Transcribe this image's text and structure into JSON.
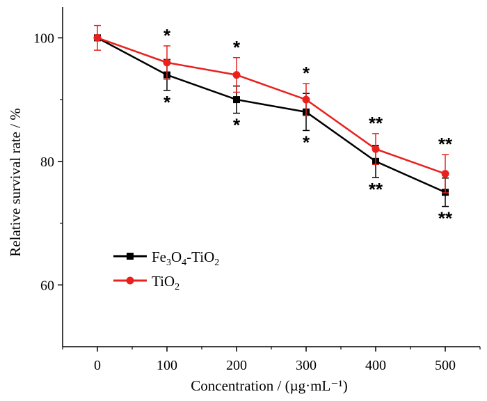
{
  "chart_data": {
    "type": "line",
    "xlabel": "Concentration / (µg·mL⁻¹)",
    "ylabel": "Relative survival rate / %",
    "xlim": [
      -50,
      550
    ],
    "ylim": [
      50,
      105
    ],
    "x": [
      0,
      100,
      200,
      300,
      400,
      500
    ],
    "x_ticks": [
      0,
      100,
      200,
      300,
      400,
      500
    ],
    "y_ticks": [
      60,
      80,
      100
    ],
    "legend_position": "lower-left",
    "series": [
      {
        "name": "Fe3O4-TiO2",
        "legend_parts": {
          "a": "Fe",
          "s1": "3",
          "b": "O",
          "s2": "4",
          "c": "-TiO",
          "s3": "2"
        },
        "color": "#000000",
        "marker": "square",
        "values": [
          100,
          94,
          90,
          88,
          80,
          75
        ],
        "errors": [
          0,
          2.5,
          2.2,
          3.0,
          2.6,
          2.3
        ],
        "significance": [
          "",
          "*",
          "*",
          "*",
          "**",
          "**"
        ],
        "significance_position": "below"
      },
      {
        "name": "TiO2",
        "legend_parts": {
          "a": "TiO",
          "s1": "2"
        },
        "color": "#e8211d",
        "marker": "circle",
        "values": [
          100,
          96,
          94,
          90,
          82,
          78
        ],
        "errors": [
          2.0,
          2.7,
          2.8,
          2.6,
          2.5,
          3.1
        ],
        "significance": [
          "",
          "*",
          "*",
          "*",
          "**",
          "**"
        ],
        "significance_position": "above"
      }
    ]
  }
}
